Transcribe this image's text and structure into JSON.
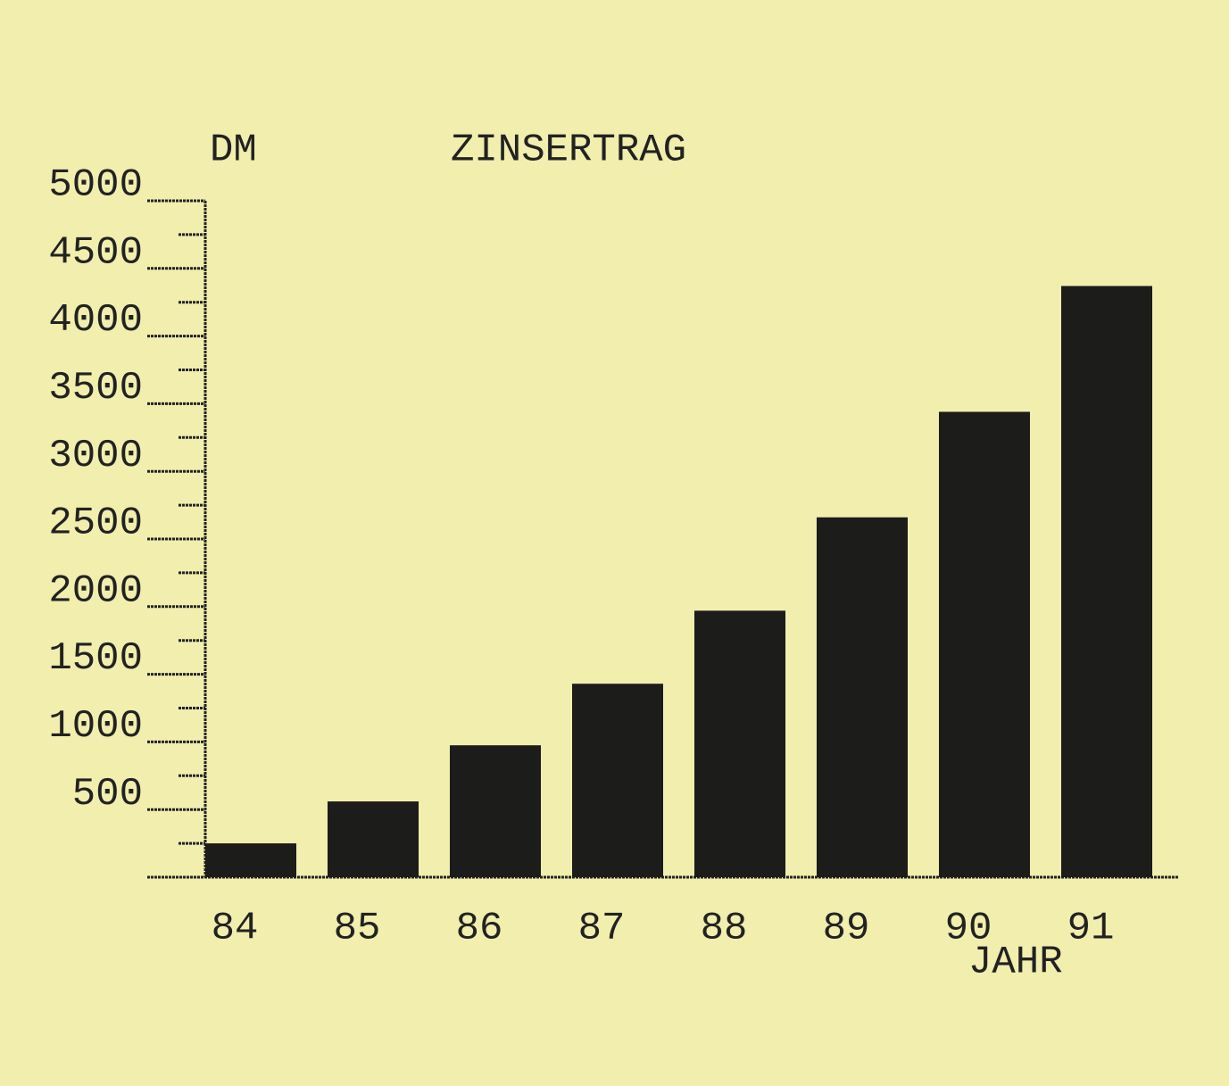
{
  "chart_data": {
    "type": "bar",
    "title": "ZINSERTRAG",
    "y_label": "DM",
    "x_label": "JAHR",
    "categories": [
      "84",
      "85",
      "86",
      "87",
      "88",
      "89",
      "90",
      "91"
    ],
    "values": [
      250,
      560,
      975,
      1430,
      1970,
      2660,
      3440,
      4370
    ],
    "color": "#1c1c1a",
    "ylim": [
      0,
      5000
    ],
    "yticks": [
      500,
      1000,
      1500,
      2000,
      2500,
      3000,
      3500,
      4000,
      4500,
      5000
    ],
    "minor_yticks": [
      250,
      750,
      1250,
      1750,
      2250,
      2750,
      3250,
      3750,
      4250,
      4750
    ]
  }
}
